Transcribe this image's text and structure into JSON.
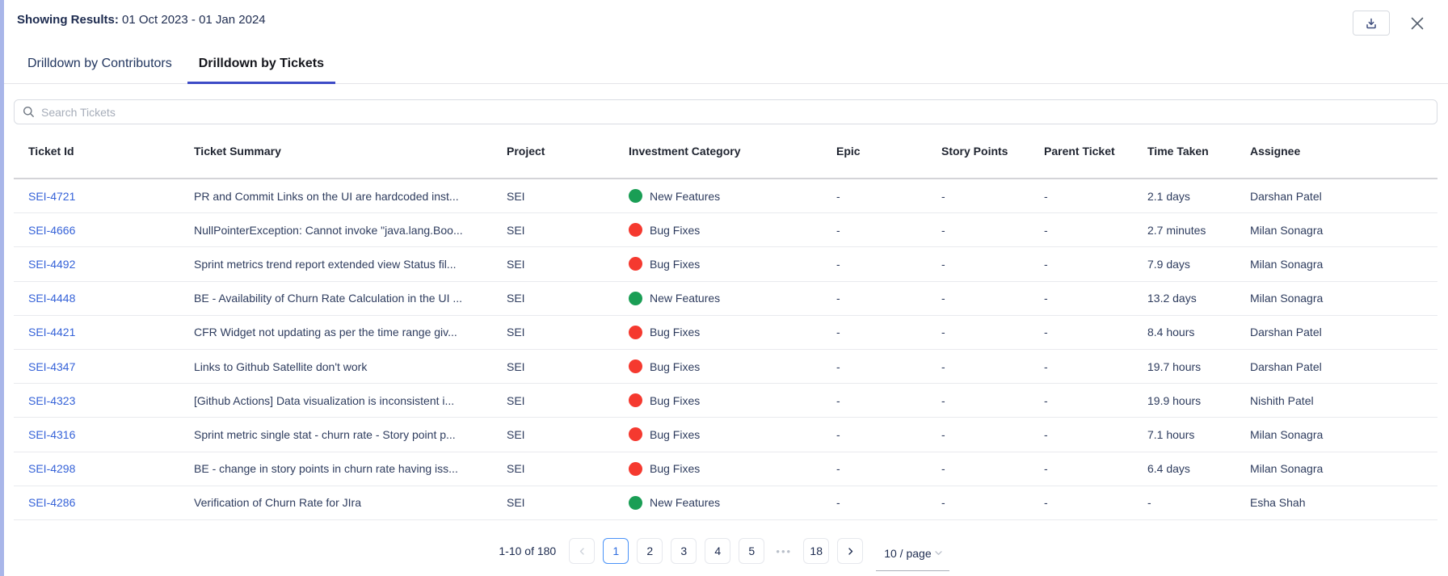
{
  "panel": {
    "showing_results_label": "Showing Results:",
    "date_range": "01 Oct 2023 - 01 Jan 2024"
  },
  "tabs": [
    {
      "label": "Drilldown by Contributors",
      "active": false
    },
    {
      "label": "Drilldown by Tickets",
      "active": true
    }
  ],
  "search": {
    "placeholder": "Search Tickets"
  },
  "table": {
    "columns": [
      "Ticket Id",
      "Ticket Summary",
      "Project",
      "Investment Category",
      "Epic",
      "Story Points",
      "Parent Ticket",
      "Time Taken",
      "Assignee"
    ],
    "category_colors": {
      "New Features": "#1a9e55",
      "Bug Fixes": "#f5392f"
    },
    "rows": [
      {
        "id": "SEI-4721",
        "summary": "PR and Commit Links on the UI are hardcoded inst...",
        "project": "SEI",
        "category": "New Features",
        "epic": "-",
        "story_points": "-",
        "parent_ticket": "-",
        "time_taken": "2.1 days",
        "assignee": "Darshan Patel"
      },
      {
        "id": "SEI-4666",
        "summary": "NullPointerException: Cannot invoke \"java.lang.Boo...",
        "project": "SEI",
        "category": "Bug Fixes",
        "epic": "-",
        "story_points": "-",
        "parent_ticket": "-",
        "time_taken": "2.7 minutes",
        "assignee": "Milan Sonagra"
      },
      {
        "id": "SEI-4492",
        "summary": "Sprint metrics trend report extended view Status fil...",
        "project": "SEI",
        "category": "Bug Fixes",
        "epic": "-",
        "story_points": "-",
        "parent_ticket": "-",
        "time_taken": "7.9 days",
        "assignee": "Milan Sonagra"
      },
      {
        "id": "SEI-4448",
        "summary": "BE - Availability of Churn Rate Calculation in the UI ...",
        "project": "SEI",
        "category": "New Features",
        "epic": "-",
        "story_points": "-",
        "parent_ticket": "-",
        "time_taken": "13.2 days",
        "assignee": "Milan Sonagra"
      },
      {
        "id": "SEI-4421",
        "summary": "CFR Widget not updating as per the time range giv...",
        "project": "SEI",
        "category": "Bug Fixes",
        "epic": "-",
        "story_points": "-",
        "parent_ticket": "-",
        "time_taken": "8.4 hours",
        "assignee": "Darshan Patel"
      },
      {
        "id": "SEI-4347",
        "summary": "Links to Github Satellite don't work",
        "project": "SEI",
        "category": "Bug Fixes",
        "epic": "-",
        "story_points": "-",
        "parent_ticket": "-",
        "time_taken": "19.7 hours",
        "assignee": "Darshan Patel"
      },
      {
        "id": "SEI-4323",
        "summary": "[Github Actions] Data visualization is inconsistent i...",
        "project": "SEI",
        "category": "Bug Fixes",
        "epic": "-",
        "story_points": "-",
        "parent_ticket": "-",
        "time_taken": "19.9 hours",
        "assignee": "Nishith Patel"
      },
      {
        "id": "SEI-4316",
        "summary": "Sprint metric single stat - churn rate - Story point p...",
        "project": "SEI",
        "category": "Bug Fixes",
        "epic": "-",
        "story_points": "-",
        "parent_ticket": "-",
        "time_taken": "7.1 hours",
        "assignee": "Milan Sonagra"
      },
      {
        "id": "SEI-4298",
        "summary": "BE - change in story points in churn rate having iss...",
        "project": "SEI",
        "category": "Bug Fixes",
        "epic": "-",
        "story_points": "-",
        "parent_ticket": "-",
        "time_taken": "6.4 days",
        "assignee": "Milan Sonagra"
      },
      {
        "id": "SEI-4286",
        "summary": "Verification of Churn Rate for JIra",
        "project": "SEI",
        "category": "New Features",
        "epic": "-",
        "story_points": "-",
        "parent_ticket": "-",
        "time_taken": "-",
        "assignee": "Esha Shah"
      }
    ]
  },
  "pagination": {
    "range_text": "1-10 of 180",
    "active_page": "1",
    "items": [
      {
        "type": "prev"
      },
      {
        "type": "page",
        "label": "1"
      },
      {
        "type": "page",
        "label": "2"
      },
      {
        "type": "page",
        "label": "3"
      },
      {
        "type": "page",
        "label": "4"
      },
      {
        "type": "page",
        "label": "5"
      },
      {
        "type": "ellipsis",
        "label": "•••"
      },
      {
        "type": "page",
        "label": "18"
      },
      {
        "type": "next"
      }
    ],
    "page_size_label": "10 / page"
  },
  "colors": {
    "accent_underline": "#3d4bc6",
    "link": "#3562d8",
    "left_stripe": "#a9b6e9",
    "active_page_border": "#4a93f8",
    "active_page_text": "#2e6de0",
    "new_features_dot": "#1a9e55",
    "bug_fixes_dot": "#f5392f"
  }
}
